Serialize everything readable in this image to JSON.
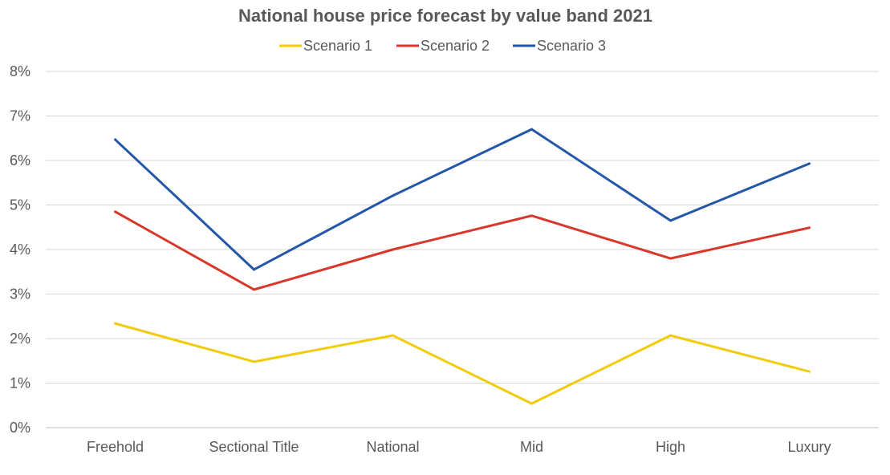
{
  "chart_data": {
    "type": "line",
    "title": "National house price forecast by value band 2021",
    "xlabel": "",
    "ylabel": "",
    "categories": [
      "Freehold",
      "Sectional Title",
      "National",
      "Mid",
      "High",
      "Luxury"
    ],
    "ylim": [
      0,
      8
    ],
    "yticks": [
      "0%",
      "1%",
      "2%",
      "3%",
      "4%",
      "5%",
      "6%",
      "7%",
      "8%"
    ],
    "grid": true,
    "legend_position": "top",
    "series": [
      {
        "name": "Scenario 1",
        "color": "#f2cc0c",
        "values": [
          2.34,
          1.48,
          2.07,
          0.54,
          2.07,
          1.26
        ]
      },
      {
        "name": "Scenario 2",
        "color": "#d7382b",
        "values": [
          4.85,
          3.1,
          4.0,
          4.76,
          3.8,
          4.49
        ]
      },
      {
        "name": "Scenario 3",
        "color": "#2457a8",
        "values": [
          6.47,
          3.55,
          5.21,
          6.7,
          4.65,
          5.93
        ]
      }
    ]
  }
}
